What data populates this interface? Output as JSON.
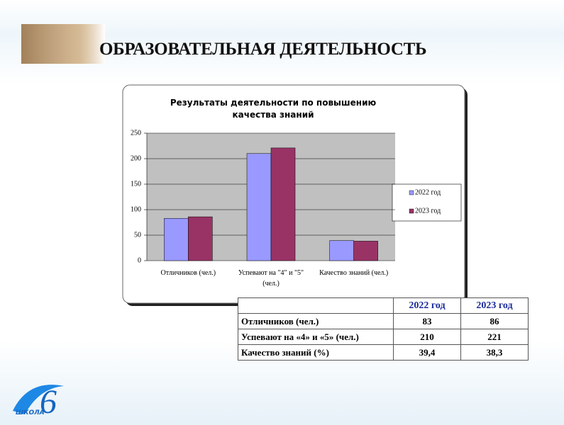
{
  "slide_title": "ОБРАЗОВАТЕЛЬНАЯ ДЕЯТЕЛЬНОСТЬ",
  "chart_data": {
    "type": "bar",
    "title": "Результаты деятельности по повышению качества знаний",
    "categories": [
      "Отличников (чел.)",
      "Успевают на \"4\" и \"5\" (чел.)",
      "Качество знаний (чел.)"
    ],
    "series": [
      {
        "name": "2022 год",
        "color": "#9999ff",
        "values": [
          83,
          210,
          39.4
        ]
      },
      {
        "name": "2023 год",
        "color": "#993366",
        "values": [
          86,
          221,
          38.3
        ]
      }
    ],
    "ylim": [
      0,
      250
    ],
    "yticks": [
      0,
      50,
      100,
      150,
      200,
      250
    ],
    "grid": true,
    "legend": "right"
  },
  "table": {
    "header": [
      "2022 год",
      "2023 год"
    ],
    "rows": [
      [
        "Отличников (чел.)",
        "83",
        "86"
      ],
      [
        "Успевают на «4» и «5» (чел.)",
        "210",
        "221"
      ],
      [
        "Качество знаний (%)",
        "39,4",
        "38,3"
      ]
    ]
  },
  "logo": {
    "text": "ШКОЛА",
    "number": "6"
  }
}
